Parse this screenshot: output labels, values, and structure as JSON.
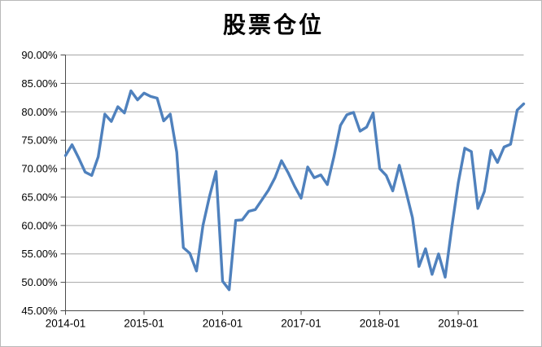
{
  "chart": {
    "title": "股票仓位",
    "colors": {
      "line": "#4F81BD",
      "gridline": "#A6A6A6",
      "axis": "#4A4A4A",
      "background": "#FFFFFF",
      "border": "#B9B9B9",
      "text": "#000000"
    }
  },
  "chart_data": {
    "type": "line",
    "title": "股票仓位",
    "xlabel": "",
    "ylabel": "",
    "ylim": [
      45,
      90
    ],
    "y_tick_step": 5,
    "grid": "horizontal",
    "legend": "none",
    "y_tick_labels": [
      "90.00%",
      "85.00%",
      "80.00%",
      "75.00%",
      "70.00%",
      "65.00%",
      "60.00%",
      "55.00%",
      "50.00%",
      "45.00%"
    ],
    "x_tick_labels": [
      "2014-01",
      "2015-01",
      "2016-01",
      "2017-01",
      "2018-01",
      "2019-01"
    ],
    "x_tick_indices": [
      0,
      12,
      24,
      36,
      48,
      60
    ],
    "categories": [
      "2014-01",
      "2014-02",
      "2014-03",
      "2014-04",
      "2014-05",
      "2014-06",
      "2014-07",
      "2014-08",
      "2014-09",
      "2014-10",
      "2014-11",
      "2014-12",
      "2015-01",
      "2015-02",
      "2015-03",
      "2015-04",
      "2015-05",
      "2015-06",
      "2015-07",
      "2015-08",
      "2015-09",
      "2015-10",
      "2015-11",
      "2015-12",
      "2016-01",
      "2016-02",
      "2016-03",
      "2016-04",
      "2016-05",
      "2016-06",
      "2016-07",
      "2016-08",
      "2016-09",
      "2016-10",
      "2016-11",
      "2016-12",
      "2017-01",
      "2017-02",
      "2017-03",
      "2017-04",
      "2017-05",
      "2017-06",
      "2017-07",
      "2017-08",
      "2017-09",
      "2017-10",
      "2017-11",
      "2017-12",
      "2018-01",
      "2018-02",
      "2018-03",
      "2018-04",
      "2018-05",
      "2018-06",
      "2018-07",
      "2018-08",
      "2018-09",
      "2018-10",
      "2018-11",
      "2018-12",
      "2019-01",
      "2019-02",
      "2019-03",
      "2019-04",
      "2019-05",
      "2019-06",
      "2019-07",
      "2019-08",
      "2019-09",
      "2019-10",
      "2019-11"
    ],
    "values": [
      72.3,
      74.2,
      71.9,
      69.4,
      68.8,
      72.1,
      79.6,
      78.3,
      80.9,
      79.8,
      83.7,
      82.1,
      83.3,
      82.7,
      82.4,
      78.4,
      79.6,
      72.9,
      56.1,
      55.1,
      52.0,
      60.0,
      65.1,
      69.5,
      50.2,
      48.7,
      60.9,
      61.0,
      62.5,
      62.8,
      64.5,
      66.2,
      68.4,
      71.4,
      69.3,
      66.9,
      64.8,
      70.3,
      68.4,
      68.9,
      67.2,
      72.1,
      77.6,
      79.5,
      79.9,
      76.6,
      77.3,
      79.8,
      70.0,
      68.8,
      66.1,
      70.6,
      66.1,
      61.4,
      52.8,
      55.9,
      51.4,
      55.0,
      50.9,
      59.5,
      67.5,
      73.6,
      73.0,
      63.0,
      66.0,
      73.2,
      71.1,
      73.8,
      74.3,
      80.3,
      81.4
    ]
  }
}
